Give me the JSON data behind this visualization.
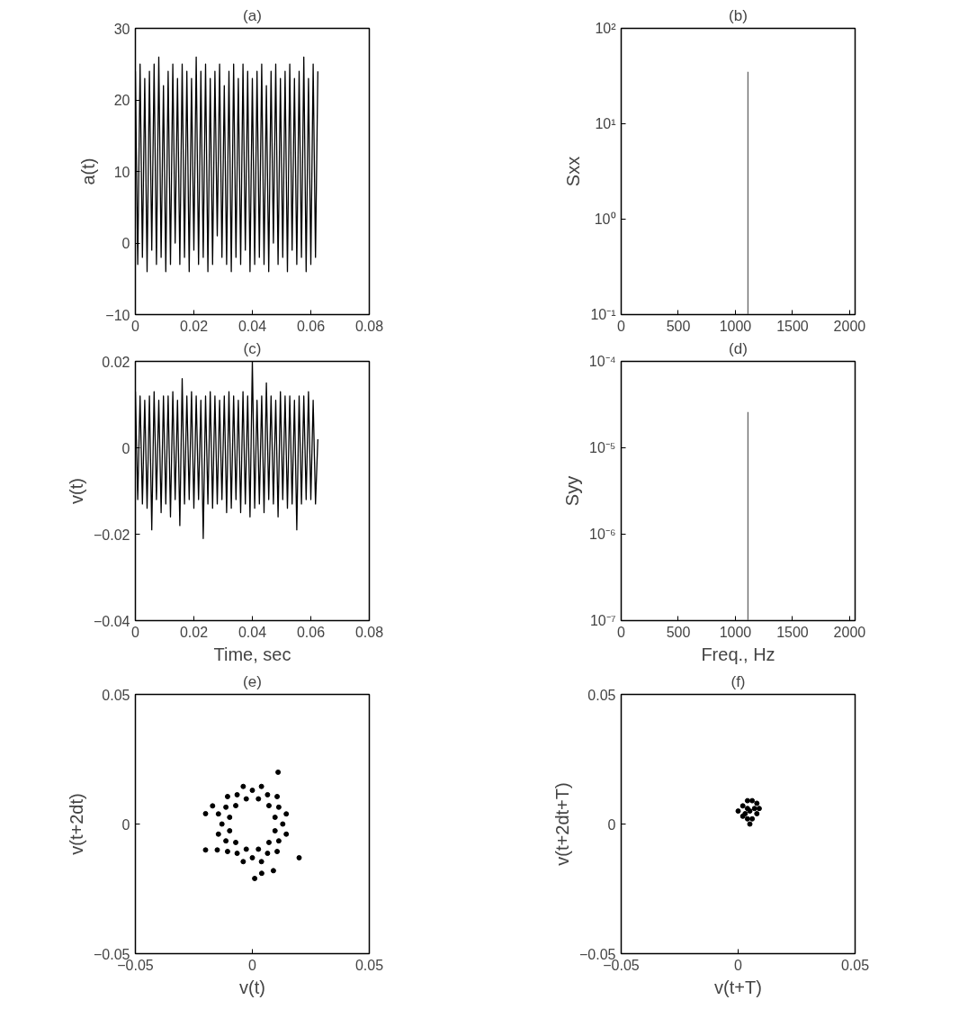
{
  "chart_data": [
    {
      "type": "line",
      "title": "(a)",
      "ylabel": "a(t)",
      "xlim": [
        0,
        0.08
      ],
      "ylim": [
        -10,
        30
      ],
      "xticks": [
        0,
        0.02,
        0.04,
        0.06,
        0.08
      ],
      "yticks": [
        -10,
        0,
        10,
        20,
        30
      ],
      "grid": false,
      "line_style": "solid",
      "x": [
        0,
        0.0008,
        0.0016,
        0.0024,
        0.0032,
        0.004,
        0.0048,
        0.0056,
        0.0064,
        0.0072,
        0.008,
        0.0088,
        0.0096,
        0.0104,
        0.0112,
        0.012,
        0.0128,
        0.0136,
        0.0144,
        0.0152,
        0.016,
        0.0168,
        0.0176,
        0.0184,
        0.0192,
        0.02,
        0.0208,
        0.0216,
        0.0224,
        0.0232,
        0.024,
        0.0248,
        0.0256,
        0.0264,
        0.0272,
        0.028,
        0.0288,
        0.0296,
        0.0304,
        0.0312,
        0.032,
        0.0328,
        0.0336,
        0.0344,
        0.0352,
        0.036,
        0.0368,
        0.0376,
        0.0384,
        0.0392,
        0.04,
        0.0408,
        0.0416,
        0.0424,
        0.0432,
        0.044,
        0.0448,
        0.0456,
        0.0464,
        0.0472,
        0.048,
        0.0488,
        0.0496,
        0.0504,
        0.0512,
        0.052,
        0.0528,
        0.0536,
        0.0544,
        0.0552,
        0.056,
        0.0568,
        0.0576,
        0.0584,
        0.0592,
        0.06,
        0.0608,
        0.0616,
        0.0624
      ],
      "series": [
        {
          "color": "#000000",
          "values": [
            24,
            -3,
            25,
            -2,
            23,
            -4,
            24,
            -1,
            25,
            -3,
            26,
            -2,
            22,
            -4,
            24,
            -3,
            25,
            0,
            23,
            -3,
            25,
            -2,
            24,
            -4,
            23,
            -1,
            26,
            -3,
            24,
            -2,
            25,
            -4,
            23,
            -3,
            24,
            1,
            25,
            -2,
            22,
            -3,
            24,
            -4,
            25,
            -2,
            23,
            -3,
            25,
            -1,
            24,
            -4,
            23,
            -3,
            24,
            -2,
            25,
            -3,
            22,
            -4,
            24,
            0,
            25,
            -3,
            23,
            -2,
            24,
            -4,
            25,
            -1,
            23,
            -3,
            24,
            -2,
            26,
            -4,
            23,
            -3,
            25,
            -2,
            24
          ]
        }
      ]
    },
    {
      "type": "line",
      "title": "(b)",
      "ylabel": "Sxx",
      "log": true,
      "xlim": [
        0,
        2048
      ],
      "ylim": [
        0.1,
        100
      ],
      "xticks": [
        0,
        500,
        1000,
        1500,
        2000
      ],
      "yticks": [
        {
          "value": 0.1,
          "label": "10⁻¹"
        },
        {
          "value": 1,
          "label": "10⁰"
        },
        {
          "value": 10,
          "label": "10¹"
        },
        {
          "value": 100,
          "label": "10²"
        }
      ],
      "grid": false,
      "x": [
        1110,
        1110
      ],
      "series": [
        {
          "color": "#666666",
          "values": [
            0.1,
            35
          ]
        }
      ]
    },
    {
      "type": "line",
      "title": "(c)",
      "xlabel": "Time, sec",
      "ylabel": "v(t)",
      "xlim": [
        0,
        0.08
      ],
      "ylim": [
        -0.04,
        0.02
      ],
      "xticks": [
        0,
        0.02,
        0.04,
        0.06,
        0.08
      ],
      "yticks": [
        -0.04,
        -0.02,
        0,
        0.02
      ],
      "grid": false,
      "line_style": "solid",
      "x": [
        0,
        0.0008,
        0.0016,
        0.0024,
        0.0032,
        0.004,
        0.0048,
        0.0056,
        0.0064,
        0.0072,
        0.008,
        0.0088,
        0.0096,
        0.0104,
        0.0112,
        0.012,
        0.0128,
        0.0136,
        0.0144,
        0.0152,
        0.016,
        0.0168,
        0.0176,
        0.0184,
        0.0192,
        0.02,
        0.0208,
        0.0216,
        0.0224,
        0.0232,
        0.024,
        0.0248,
        0.0256,
        0.0264,
        0.0272,
        0.028,
        0.0288,
        0.0296,
        0.0304,
        0.0312,
        0.032,
        0.0328,
        0.0336,
        0.0344,
        0.0352,
        0.036,
        0.0368,
        0.0376,
        0.0384,
        0.0392,
        0.04,
        0.0408,
        0.0416,
        0.0424,
        0.0432,
        0.044,
        0.0448,
        0.0456,
        0.0464,
        0.0472,
        0.048,
        0.0488,
        0.0496,
        0.0504,
        0.0512,
        0.052,
        0.0528,
        0.0536,
        0.0544,
        0.0552,
        0.056,
        0.0568,
        0.0576,
        0.0584,
        0.0592,
        0.06,
        0.0608,
        0.0616,
        0.0624
      ],
      "series": [
        {
          "color": "#000000",
          "values": [
            0.013,
            -0.012,
            0.012,
            -0.013,
            0.011,
            -0.014,
            0.012,
            -0.019,
            0.013,
            -0.012,
            0.011,
            -0.015,
            0.012,
            -0.013,
            0.012,
            -0.016,
            0.013,
            -0.012,
            0.011,
            -0.018,
            0.016,
            -0.013,
            0.012,
            -0.012,
            0.013,
            -0.014,
            0.012,
            -0.012,
            0.011,
            -0.021,
            0.012,
            -0.013,
            0.013,
            -0.014,
            0.012,
            -0.013,
            0.011,
            -0.012,
            0.012,
            -0.015,
            0.013,
            -0.014,
            0.012,
            -0.012,
            0.011,
            -0.015,
            0.013,
            -0.013,
            0.012,
            -0.016,
            0.02,
            -0.014,
            0.011,
            -0.013,
            0.012,
            -0.015,
            0.015,
            -0.012,
            0.012,
            -0.013,
            0.011,
            -0.016,
            0.013,
            -0.012,
            0.012,
            -0.014,
            0.012,
            -0.013,
            0.011,
            -0.019,
            0.012,
            -0.013,
            0.012,
            -0.012,
            0.013,
            -0.012,
            0.011,
            -0.013,
            0.002
          ]
        }
      ]
    },
    {
      "type": "line",
      "title": "(d)",
      "xlabel": "Freq., Hz",
      "ylabel": "Syy",
      "log": true,
      "xlim": [
        0,
        2048
      ],
      "ylim": [
        1e-07,
        0.0001
      ],
      "xticks": [
        0,
        500,
        1000,
        1500,
        2000
      ],
      "yticks": [
        {
          "value": 1e-07,
          "label": "10⁻⁷"
        },
        {
          "value": 1e-06,
          "label": "10⁻⁶"
        },
        {
          "value": 1e-05,
          "label": "10⁻⁵"
        },
        {
          "value": 0.0001,
          "label": "10⁻⁴"
        }
      ],
      "grid": false,
      "x": [
        1110,
        1110
      ],
      "series": [
        {
          "color": "#666666",
          "values": [
            1e-07,
            2.6e-05
          ]
        }
      ]
    },
    {
      "type": "scatter",
      "title": "(e)",
      "xlabel": "v(t)",
      "ylabel": "v(t+2dt)",
      "xlim": [
        -0.05,
        0.05
      ],
      "ylim": [
        -0.05,
        0.05
      ],
      "xticks": [
        -0.05,
        0,
        0.05
      ],
      "yticks": [
        -0.05,
        0,
        0.05
      ],
      "grid": false,
      "marker": "circle",
      "x": [
        0.0097,
        0.0071,
        0.0026,
        -0.0026,
        -0.0071,
        -0.0097,
        -0.0097,
        -0.0071,
        -0.0026,
        0.0026,
        0.0071,
        0.0097,
        0.013,
        0.0113,
        0.0065,
        0,
        -0.0065,
        -0.0113,
        -0.013,
        -0.0113,
        -0.0065,
        0,
        0.0065,
        0.0113,
        0.0145,
        0.0106,
        0.0039,
        -0.0039,
        -0.0106,
        -0.0145,
        -0.0145,
        -0.0106,
        -0.0039,
        0.0039,
        0.0106,
        0.0145,
        0.011,
        0.02,
        -0.02,
        -0.02,
        0.001,
        -0.017,
        -0.015,
        0.009,
        0.004
      ],
      "series": [
        {
          "color": "#000000",
          "values": [
            0.0026,
            0.0071,
            0.0097,
            0.0097,
            0.0071,
            0.0026,
            -0.0026,
            -0.0071,
            -0.0097,
            -0.0097,
            -0.0071,
            -0.0026,
            0,
            0.0065,
            0.0113,
            0.013,
            0.0113,
            0.0065,
            0,
            -0.0065,
            -0.0113,
            -0.013,
            -0.0113,
            -0.0065,
            0.0039,
            0.0106,
            0.0145,
            0.0145,
            0.0106,
            0.0039,
            -0.0039,
            -0.0106,
            -0.0145,
            -0.0145,
            -0.0106,
            -0.0039,
            0.02,
            -0.013,
            0.004,
            -0.01,
            -0.021,
            0.007,
            -0.01,
            -0.018,
            -0.019
          ]
        }
      ]
    },
    {
      "type": "scatter",
      "title": "(f)",
      "xlabel": "v(t+T)",
      "ylabel": "v(t+2dt+T)",
      "xlim": [
        -0.05,
        0.05
      ],
      "ylim": [
        -0.05,
        0.05
      ],
      "xticks": [
        -0.05,
        0,
        0.05
      ],
      "yticks": [
        -0.05,
        0,
        0.05
      ],
      "grid": false,
      "marker": "circle",
      "x": [
        0,
        0.002,
        0.004,
        0.006,
        0.008,
        0.009,
        0.008,
        0.006,
        0.005,
        0.004,
        0.003,
        0.005,
        0.007,
        0.002,
        0.004
      ],
      "series": [
        {
          "color": "#000000",
          "values": [
            0.005,
            0.007,
            0.009,
            0.009,
            0.008,
            0.006,
            0.004,
            0.002,
            0,
            0.002,
            0.004,
            0.005,
            0.006,
            0.003,
            0.006
          ]
        }
      ]
    }
  ]
}
